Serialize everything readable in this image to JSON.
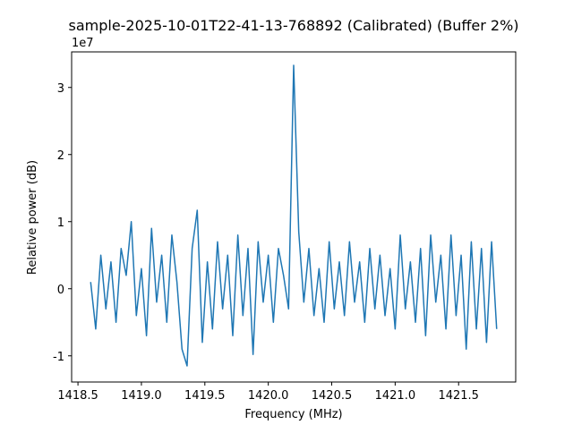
{
  "chart_data": {
    "type": "line",
    "title": "sample-2025-10-01T22-41-13-768892 (Calibrated) (Buffer 2%)",
    "xlabel": "Frequency (MHz)",
    "ylabel": "Relative power (dB)",
    "y_offset_label": "1e7",
    "x": [
      1418.6,
      1418.64,
      1418.68,
      1418.72,
      1418.76,
      1418.8,
      1418.84,
      1418.88,
      1418.92,
      1418.96,
      1419,
      1419.04,
      1419.08,
      1419.12,
      1419.16,
      1419.2,
      1419.24,
      1419.28,
      1419.32,
      1419.36,
      1419.4,
      1419.44,
      1419.48,
      1419.52,
      1419.56,
      1419.6,
      1419.64,
      1419.68,
      1419.72,
      1419.76,
      1419.8,
      1419.84,
      1419.88,
      1419.92,
      1419.96,
      1420,
      1420.04,
      1420.08,
      1420.12,
      1420.16,
      1420.2,
      1420.24,
      1420.28,
      1420.32,
      1420.36,
      1420.4,
      1420.44,
      1420.48,
      1420.52,
      1420.56,
      1420.6,
      1420.64,
      1420.68,
      1420.72,
      1420.76,
      1420.8,
      1420.84,
      1420.88,
      1420.92,
      1420.96,
      1421,
      1421.04,
      1421.08,
      1421.12,
      1421.16,
      1421.2,
      1421.24,
      1421.28,
      1421.32,
      1421.36,
      1421.4,
      1421.44,
      1421.48,
      1421.52,
      1421.56,
      1421.6,
      1421.64,
      1421.68,
      1421.72,
      1421.76,
      1421.8
    ],
    "series": [
      {
        "color": "#1f77b4",
        "values": [
          0.1,
          -0.6,
          0.5,
          -0.3,
          0.4,
          -0.5,
          0.6,
          0.2,
          1.0,
          -0.4,
          0.3,
          -0.7,
          0.9,
          -0.2,
          0.5,
          -0.5,
          0.8,
          0.1,
          -0.9,
          -1.15,
          0.6,
          1.17,
          -0.8,
          0.4,
          -0.6,
          0.7,
          -0.3,
          0.5,
          -0.7,
          0.8,
          -0.4,
          0.6,
          -0.98,
          0.7,
          -0.2,
          0.5,
          -0.5,
          0.6,
          0.2,
          -0.3,
          3.33,
          0.85,
          -0.2,
          0.6,
          -0.4,
          0.3,
          -0.5,
          0.7,
          -0.3,
          0.4,
          -0.4,
          0.7,
          -0.2,
          0.4,
          -0.5,
          0.6,
          -0.3,
          0.5,
          -0.4,
          0.3,
          -0.6,
          0.8,
          -0.3,
          0.4,
          -0.5,
          0.6,
          -0.7,
          0.8,
          -0.2,
          0.5,
          -0.6,
          0.8,
          -0.4,
          0.5,
          -0.9,
          0.7,
          -0.6,
          0.6,
          -0.8,
          0.7,
          -0.6
        ]
      }
    ],
    "xlim": [
      1418.45,
      1421.95
    ],
    "ylim": [
      -1.39,
      3.53
    ],
    "xticks": [
      1418.5,
      {
        "value": 1419,
        "label": "1419.0"
      },
      1419.5,
      {
        "value": 1420,
        "label": "1420.0"
      },
      1420.5,
      {
        "value": 1421,
        "label": "1421.0"
      },
      1421.5
    ],
    "yticks": [
      -1,
      0,
      1,
      2,
      3
    ],
    "grid": false
  }
}
